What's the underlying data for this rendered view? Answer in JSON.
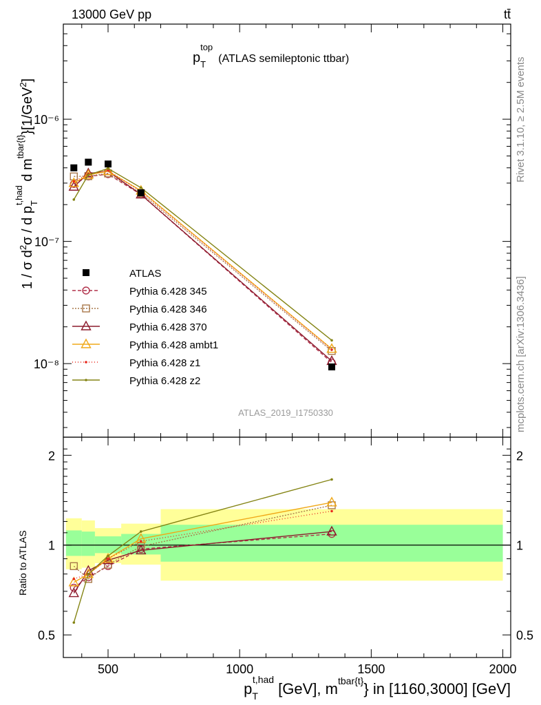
{
  "header": {
    "left": "13000 GeV pp",
    "right": "tt̄"
  },
  "chart_data": [
    {
      "type": "line",
      "title": "p_T^top (ATLAS semileptonic ttbar)",
      "title_main": "p",
      "title_sub": "T",
      "title_sup": "top",
      "title_rest": "(ATLAS semileptonic ttbar)",
      "ylabel": "1 / σ d²σ / d p_T^{t,had} d m^{tbar{t}} [1/GeV²]",
      "yscale": "log",
      "ylim": [
        2.5e-09,
        6e-06
      ],
      "xlim": [
        330,
        2030
      ],
      "yticks": [
        {
          "value": 1e-08,
          "label": "10⁻⁸"
        },
        {
          "value": 1e-07,
          "label": "10⁻⁷"
        },
        {
          "value": 1e-06,
          "label": "10⁻⁶"
        }
      ],
      "x": [
        370,
        425,
        500,
        625,
        1350
      ],
      "reference": {
        "name": "ATLAS",
        "values": [
          4e-07,
          4.45e-07,
          4.3e-07,
          2.5e-07,
          9.4e-09
        ],
        "color": "#000000"
      },
      "series": [
        {
          "name": "Pythia 6.428 345",
          "color": "#b0304a",
          "dash": "5,3",
          "marker": "circle",
          "values": [
            2.95e-07,
            3.4e-07,
            3.55e-07,
            2.42e-07,
            1.02e-08
          ]
        },
        {
          "name": "Pythia 6.428 346",
          "color": "#a8784a",
          "dash": "2,2",
          "marker": "square",
          "values": [
            3.4e-07,
            3.42e-07,
            3.6e-07,
            2.48e-07,
            1.27e-08
          ]
        },
        {
          "name": "Pythia 6.428 370",
          "color": "#8b1a2c",
          "dash": "",
          "marker": "triangle",
          "values": [
            2.8e-07,
            3.6e-07,
            3.75e-07,
            2.42e-07,
            1.05e-08
          ]
        },
        {
          "name": "Pythia 6.428 ambt1",
          "color": "#f0a818",
          "dash": "",
          "marker": "triangle",
          "values": [
            3e-07,
            3.5e-07,
            3.75e-07,
            2.6e-07,
            1.32e-08
          ]
        },
        {
          "name": "Pythia 6.428 z1",
          "color": "#e8281c",
          "dash": "1,3",
          "marker": "dot",
          "values": [
            3.1e-07,
            3.55e-07,
            3.8e-07,
            2.55e-07,
            1.3e-08
          ]
        },
        {
          "name": "Pythia 6.428 z2",
          "color": "#848414",
          "dash": "",
          "marker": "dot",
          "values": [
            2.2e-07,
            3.5e-07,
            3.95e-07,
            2.75e-07,
            1.55e-08
          ]
        }
      ],
      "legend": "left",
      "annotation": "ATLAS_2019_I1750330"
    },
    {
      "type": "line",
      "ylabel": "Ratio to ATLAS",
      "xlabel": "p_T^{t,had} [GeV], m^{tbar{t}} in [1160,3000] [GeV]",
      "xlim": [
        330,
        2030
      ],
      "ylim": [
        0.42,
        2.3
      ],
      "yscale": "log",
      "xticks": [
        500,
        1000,
        1500,
        2000
      ],
      "yticks": [
        0.5,
        1,
        2
      ],
      "bands": [
        {
          "x0": 340,
          "x1": 400,
          "yellow": [
            0.83,
            1.23
          ],
          "green": [
            0.92,
            1.12
          ]
        },
        {
          "x0": 400,
          "x1": 450,
          "yellow": [
            0.84,
            1.21
          ],
          "green": [
            0.92,
            1.11
          ]
        },
        {
          "x0": 450,
          "x1": 550,
          "yellow": [
            0.87,
            1.14
          ],
          "green": [
            0.94,
            1.07
          ]
        },
        {
          "x0": 550,
          "x1": 700,
          "yellow": [
            0.86,
            1.18
          ],
          "green": [
            0.93,
            1.09
          ]
        },
        {
          "x0": 700,
          "x1": 2000,
          "yellow": [
            0.76,
            1.32
          ],
          "green": [
            0.88,
            1.17
          ]
        }
      ],
      "series": [
        {
          "name": "Pythia 6.428 345",
          "values": [
            0.72,
            0.78,
            0.85,
            0.97,
            1.09
          ]
        },
        {
          "name": "Pythia 6.428 346",
          "values": [
            0.85,
            0.77,
            0.86,
            0.99,
            1.36
          ]
        },
        {
          "name": "Pythia 6.428 370",
          "values": [
            0.69,
            0.82,
            0.89,
            0.96,
            1.11
          ]
        },
        {
          "name": "Pythia 6.428 ambt1",
          "values": [
            0.75,
            0.8,
            0.9,
            1.05,
            1.39
          ]
        },
        {
          "name": "Pythia 6.428 z1",
          "values": [
            0.77,
            0.8,
            0.9,
            1.03,
            1.3
          ]
        },
        {
          "name": "Pythia 6.428 z2",
          "values": [
            0.55,
            0.8,
            0.92,
            1.11,
            1.66
          ]
        }
      ]
    }
  ],
  "xaxis_label": {
    "p": "p",
    "sub": "T",
    "sup": "t,had",
    "mid": " [GeV], m",
    "sup2": "tbar{t}",
    "tail": "} in [1160,3000] [GeV]"
  },
  "side_text": {
    "rivet": "Rivet 3.1.10, ≥ 2.5M events",
    "mcplots": "mcplots.cern.ch [arXiv:1306.3436]"
  }
}
